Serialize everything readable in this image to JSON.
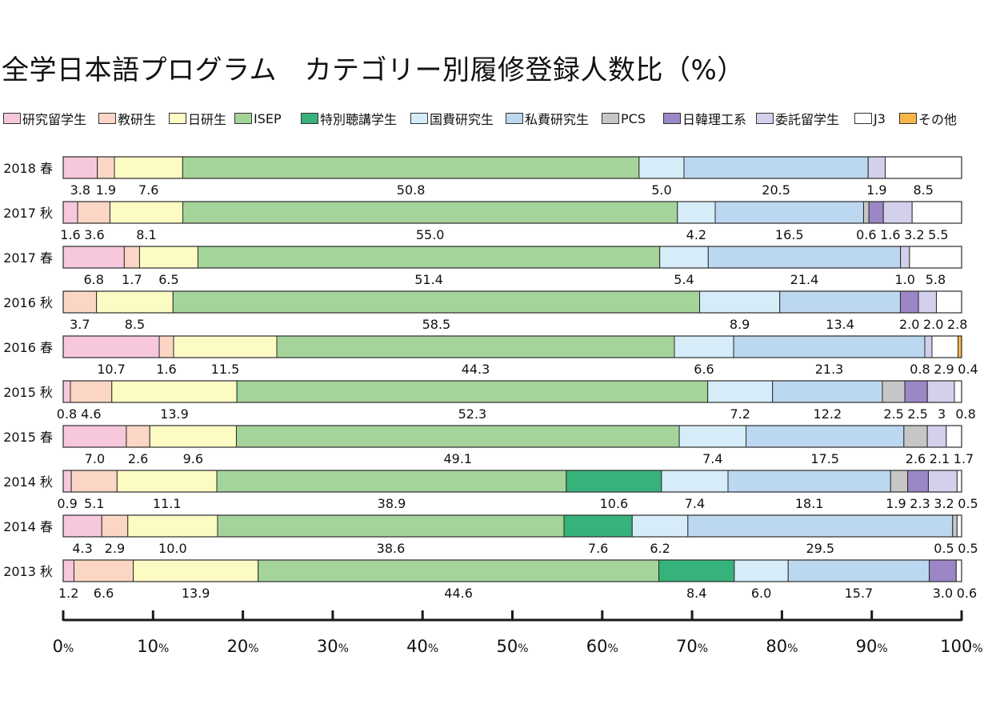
{
  "title": "全学日本語プログラム　カテゴリー別履修登録人数比（%）",
  "legend": [
    {
      "label": "研究留学生",
      "color": "#f7c7dc"
    },
    {
      "label": "教研生",
      "color": "#fbd6c4"
    },
    {
      "label": "日研生",
      "color": "#fdfbc4"
    },
    {
      "label": "ISEP",
      "color": "#a5d49a"
    },
    {
      "label": "特別聴講学生",
      "color": "#36b37a"
    },
    {
      "label": "国費研究生",
      "color": "#d6edf9"
    },
    {
      "label": "私費研究生",
      "color": "#bcd7f0"
    },
    {
      "label": "PCS",
      "color": "#c6c6c6"
    },
    {
      "label": "日韓理工系",
      "color": "#9b86c6"
    },
    {
      "label": "委託留学生",
      "color": "#d3d0ec"
    },
    {
      "label": "J3",
      "color": "#ffffff"
    },
    {
      "label": "その他",
      "color": "#f7b748"
    }
  ],
  "chart_data": {
    "type": "bar",
    "orientation": "horizontal",
    "stacked": true,
    "title": "全学日本語プログラム　カテゴリー別履修登録人数比（%）",
    "categories": [
      "2018 春",
      "2017 秋",
      "2017 春",
      "2016 秋",
      "2016 春",
      "2015 秋",
      "2015 春",
      "2014 秋",
      "2014 春",
      "2013 秋"
    ],
    "series": [
      {
        "name": "研究留学生",
        "values": [
          3.8,
          1.6,
          6.8,
          0,
          10.7,
          0.8,
          7.0,
          0.9,
          4.3,
          1.2
        ]
      },
      {
        "name": "教研生",
        "values": [
          1.9,
          3.6,
          1.7,
          3.7,
          1.6,
          4.6,
          2.6,
          5.1,
          2.9,
          6.6
        ]
      },
      {
        "name": "日研生",
        "values": [
          7.6,
          8.1,
          6.5,
          8.5,
          11.5,
          13.9,
          9.6,
          11.1,
          10.0,
          13.9
        ]
      },
      {
        "name": "ISEP",
        "values": [
          50.8,
          55.0,
          51.4,
          58.5,
          44.3,
          52.3,
          49.1,
          38.9,
          38.6,
          44.6
        ]
      },
      {
        "name": "特別聴講学生",
        "values": [
          0,
          0,
          0,
          0,
          0,
          0,
          0,
          10.6,
          7.6,
          8.4
        ]
      },
      {
        "name": "国費研究生",
        "values": [
          5.0,
          4.2,
          5.4,
          8.9,
          6.6,
          7.2,
          7.4,
          7.4,
          6.2,
          6.0
        ]
      },
      {
        "name": "私費研究生",
        "values": [
          20.5,
          16.5,
          21.4,
          13.4,
          21.3,
          12.2,
          17.5,
          18.1,
          29.5,
          15.7
        ]
      },
      {
        "name": "PCS",
        "values": [
          0,
          0.6,
          0,
          0,
          0,
          2.5,
          2.6,
          1.9,
          0.5,
          0
        ]
      },
      {
        "name": "日韓理工系",
        "values": [
          0,
          1.6,
          0,
          2.0,
          0,
          2.5,
          0,
          2.3,
          0,
          3.0
        ]
      },
      {
        "name": "委託留学生",
        "values": [
          1.9,
          3.2,
          1.0,
          2.0,
          0.8,
          3,
          2.1,
          3.2,
          0,
          0
        ]
      },
      {
        "name": "J3",
        "values": [
          8.5,
          5.5,
          5.8,
          2.8,
          2.9,
          0.8,
          1.7,
          0.5,
          0.5,
          0.6
        ]
      },
      {
        "name": "その他",
        "values": [
          0,
          0,
          0,
          0,
          0.4,
          0,
          0,
          0,
          0,
          0
        ]
      }
    ],
    "value_labels": [
      [
        "3.8",
        "1.9",
        "7.6",
        "50.8",
        "5.0",
        "20.5",
        "1.9",
        "8.5"
      ],
      [
        "1.6",
        "3.6",
        "8.1",
        "55.0",
        "4.2",
        "16.5",
        "0.6",
        "1.6",
        "3.2",
        "5.5"
      ],
      [
        "6.8",
        "1.7",
        "6.5",
        "51.4",
        "5.4",
        "21.4",
        "1.0",
        "5.8"
      ],
      [
        "3.7",
        "8.5",
        "58.5",
        "8.9",
        "13.4",
        "2.0",
        "2.0",
        "2.8"
      ],
      [
        "10.7",
        "1.6",
        "11.5",
        "44.3",
        "6.6",
        "21.3",
        "0.8",
        "2.9",
        "0.4"
      ],
      [
        "0.8",
        "4.6",
        "13.9",
        "52.3",
        "7.2",
        "12.2",
        "2.5",
        "2.5",
        "3",
        "0.8"
      ],
      [
        "7.0",
        "2.6",
        "9.6",
        "49.1",
        "7.4",
        "17.5",
        "2.6",
        "2.1",
        "1.7"
      ],
      [
        "0.9",
        "5.1",
        "11.1",
        "38.9",
        "10.6",
        "7.4",
        "18.1",
        "1.9",
        "2.3",
        "3.2",
        "0.5"
      ],
      [
        "4.3",
        "2.9",
        "10.0",
        "38.6",
        "7.6",
        "6.2",
        "29.5",
        "0.5",
        "0.5"
      ],
      [
        "1.2",
        "6.6",
        "13.9",
        "44.6",
        "8.4",
        "6.0",
        "15.7",
        "3.0",
        "0.6"
      ]
    ],
    "xlim": [
      0,
      100
    ],
    "xticks": [
      0,
      10,
      20,
      30,
      40,
      50,
      60,
      70,
      80,
      90,
      100
    ],
    "tick_unit": "%",
    "legend_position": "top",
    "grid": false
  }
}
